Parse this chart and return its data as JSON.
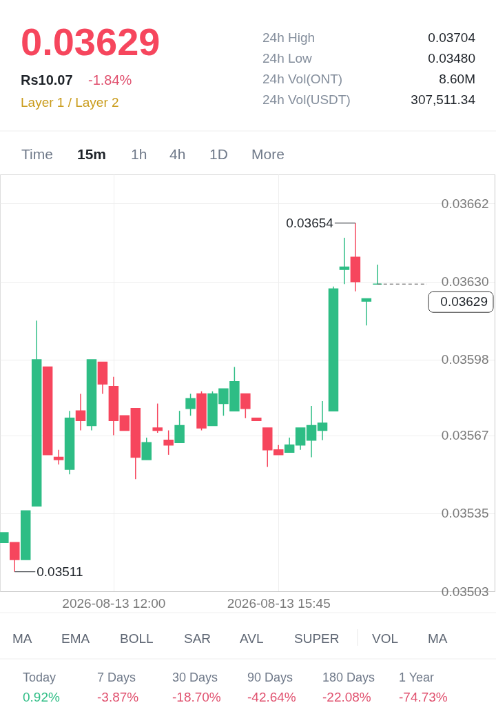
{
  "chart_data": {
    "type": "candlestick",
    "title": "0.03629",
    "x": [
      "2026-08-13T09:30",
      "2026-08-13T09:45",
      "2026-08-13T10:00",
      "2026-08-13T10:15",
      "2026-08-13T10:30",
      "2026-08-13T10:45",
      "2026-08-13T11:00",
      "2026-08-13T11:15",
      "2026-08-13T11:30",
      "2026-08-13T11:45",
      "2026-08-13T12:00",
      "2026-08-13T12:15",
      "2026-08-13T12:30",
      "2026-08-13T12:45",
      "2026-08-13T13:00",
      "2026-08-13T13:15",
      "2026-08-13T13:30",
      "2026-08-13T13:45",
      "2026-08-13T14:00",
      "2026-08-13T14:15",
      "2026-08-13T14:30",
      "2026-08-13T14:45",
      "2026-08-13T15:00",
      "2026-08-13T15:15",
      "2026-08-13T15:30",
      "2026-08-13T15:45",
      "2026-08-13T16:00",
      "2026-08-13T16:15",
      "2026-08-13T16:30",
      "2026-08-13T16:45",
      "2026-08-13T17:00",
      "2026-08-13T17:15",
      "2026-08-13T17:30",
      "2026-08-13T17:45",
      "2026-08-13T18:00"
    ],
    "ohlc": [
      [
        0.03523,
        0.03527,
        0.03523,
        0.03527
      ],
      [
        0.03523,
        0.03523,
        0.03511,
        0.03516
      ],
      [
        0.03516,
        0.03536,
        0.03516,
        0.03536
      ],
      [
        0.03538,
        0.03614,
        0.03538,
        0.03598
      ],
      [
        0.03595,
        0.03595,
        0.03559,
        0.03559
      ],
      [
        0.03558,
        0.03561,
        0.03555,
        0.03557
      ],
      [
        0.03553,
        0.03577,
        0.03551,
        0.03574
      ],
      [
        0.03577,
        0.03584,
        0.03569,
        0.03573
      ],
      [
        0.03571,
        0.03598,
        0.03569,
        0.03598
      ],
      [
        0.03597,
        0.03597,
        0.03584,
        0.03588
      ],
      [
        0.03587,
        0.03591,
        0.03567,
        0.03573
      ],
      [
        0.03575,
        0.03575,
        0.03569,
        0.03569
      ],
      [
        0.03578,
        0.03578,
        0.03549,
        0.03558
      ],
      [
        0.03557,
        0.03566,
        0.03557,
        0.03564
      ],
      [
        0.0357,
        0.0358,
        0.03568,
        0.03569
      ],
      [
        0.03565,
        0.03569,
        0.03559,
        0.03563
      ],
      [
        0.03564,
        0.03577,
        0.03564,
        0.03571
      ],
      [
        0.03578,
        0.03584,
        0.03575,
        0.03582
      ],
      [
        0.03584,
        0.03585,
        0.03569,
        0.0357
      ],
      [
        0.03571,
        0.03585,
        0.03571,
        0.03584
      ],
      [
        0.0358,
        0.03586,
        0.03575,
        0.03586
      ],
      [
        0.03577,
        0.03595,
        0.03577,
        0.03589
      ],
      [
        0.03584,
        0.03584,
        0.03574,
        0.03578
      ],
      [
        0.03574,
        0.03574,
        0.03573,
        0.03573
      ],
      [
        0.0357,
        0.0357,
        0.03554,
        0.03561
      ],
      [
        0.03561,
        0.03563,
        0.03559,
        0.03559
      ],
      [
        0.0356,
        0.03566,
        0.0356,
        0.03563
      ],
      [
        0.03563,
        0.0357,
        0.03561,
        0.0357
      ],
      [
        0.03565,
        0.03579,
        0.03558,
        0.03571
      ],
      [
        0.03569,
        0.03581,
        0.03565,
        0.03572
      ],
      [
        0.03577,
        0.03628,
        0.03577,
        0.03627
      ],
      [
        0.03635,
        0.03648,
        0.03629,
        0.03636
      ],
      [
        0.0364,
        0.03654,
        0.03626,
        0.0363
      ],
      [
        0.03622,
        0.03623,
        0.03612,
        0.03623
      ],
      [
        0.03629,
        0.03637,
        0.03629,
        0.03629
      ]
    ],
    "colors": [
      "#2ebd85",
      "#f6465d",
      "#2ebd85",
      "#2ebd85",
      "#f6465d",
      "#f6465d",
      "#2ebd85",
      "#f6465d",
      "#2ebd85",
      "#f6465d",
      "#f6465d",
      "#f6465d",
      "#f6465d",
      "#2ebd85",
      "#f6465d",
      "#f6465d",
      "#2ebd85",
      "#2ebd85",
      "#f6465d",
      "#2ebd85",
      "#2ebd85",
      "#2ebd85",
      "#f6465d",
      "#f6465d",
      "#f6465d",
      "#f6465d",
      "#2ebd85",
      "#2ebd85",
      "#2ebd85",
      "#2ebd85",
      "#2ebd85",
      "#2ebd85",
      "#f6465d",
      "#2ebd85",
      "#2ebd85"
    ],
    "xlim": [
      "2026-08-13T09:25",
      "2026-08-13T20:40"
    ],
    "xticks": [
      {
        "value": "2026-08-13T12:00",
        "label": "2026-08-13 12:00"
      },
      {
        "value": "2026-08-13T15:45",
        "label": "2026-08-13 15:45"
      }
    ],
    "ylim": [
      0.03503,
      0.03674
    ],
    "yticks": [
      0.03503,
      0.03535,
      0.03567,
      0.03598,
      {
        "value": 0.0363,
        "label": "0.03630"
      },
      0.03662
    ],
    "grid": true,
    "ref_lines": [
      {
        "axis": "y",
        "value": 0.03629,
        "label": "0.03629",
        "line_style": "dashed",
        "color": "#555555"
      }
    ],
    "annotations": [
      "Rs10.07",
      "-1.84%",
      "Layer 1 / Layer 2",
      "24h High",
      "0.03704",
      "24h Low",
      "0.03480",
      "24h Vol(ONT)",
      "8.60M",
      "24h Vol(USDT)",
      "307,511.34",
      "Time",
      "15m",
      "1h",
      "4h",
      "1D",
      "More",
      {
        "text": "0.03654",
        "x": "2026-08-13T17:30",
        "y": 0.03654
      },
      {
        "text": "0.03511",
        "x": "2026-08-13T09:45",
        "y": 0.03511
      },
      "MA",
      "EMA",
      "BOLL",
      "SAR",
      "AVL",
      "SUPER",
      "VOL",
      "MA",
      "Today",
      "0.92%",
      "7 Days",
      "-3.87%",
      "30 Days",
      "-18.70%",
      "90 Days",
      "-42.64%",
      "180 Days",
      "-22.08%",
      "1 Year",
      "-74.73%"
    ]
  }
}
